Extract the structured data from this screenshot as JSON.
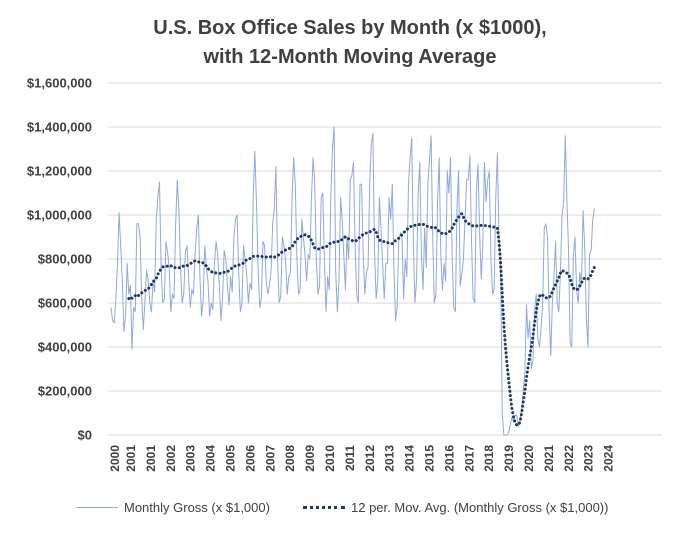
{
  "chart_data": {
    "type": "line",
    "title_line1": "U.S. Box Office Sales by Month (x $1000),",
    "title_line2": "with 12-Month Moving Average",
    "xlabel": "",
    "ylabel": "",
    "x_start_year": 2000,
    "x_tick_labels": [
      "2000",
      "2001",
      "2001",
      "2002",
      "2003",
      "2004",
      "2005",
      "2006",
      "2007",
      "2008",
      "2009",
      "2010",
      "2011",
      "2012",
      "2013",
      "2014",
      "2015",
      "2016",
      "2017",
      "2018",
      "2019",
      "2020",
      "2021",
      "2022",
      "2023",
      "2024"
    ],
    "y_tick_labels": [
      "$0",
      "$200,000",
      "$400,000",
      "$600,000",
      "$800,000",
      "$1,000,000",
      "$1,200,000",
      "$1,400,000",
      "$1,600,000"
    ],
    "ylim": [
      0,
      1600000
    ],
    "grid": true,
    "legend_position": "bottom",
    "colors": {
      "monthly": "#8eaadb",
      "moving_avg": "#1f3864",
      "grid": "#d9d9d9",
      "text": "#404040"
    },
    "series": [
      {
        "name": "Monthly Gross (x $1,000)",
        "style": "solid",
        "values": [
          580000,
          520000,
          510000,
          620000,
          780000,
          1010000,
          860000,
          700000,
          470000,
          540000,
          780000,
          640000,
          680000,
          390000,
          580000,
          560000,
          960000,
          960000,
          900000,
          620000,
          480000,
          610000,
          750000,
          700000,
          600000,
          560000,
          700000,
          650000,
          980000,
          1080000,
          1150000,
          760000,
          600000,
          620000,
          880000,
          830000,
          760000,
          560000,
          640000,
          620000,
          960000,
          1160000,
          1020000,
          760000,
          600000,
          640000,
          830000,
          860000,
          720000,
          580000,
          660000,
          640000,
          820000,
          940000,
          1000000,
          720000,
          540000,
          610000,
          860000,
          760000,
          700000,
          540000,
          600000,
          570000,
          780000,
          880000,
          820000,
          680000,
          520000,
          620000,
          840000,
          800000,
          680000,
          590000,
          720000,
          650000,
          900000,
          980000,
          1000000,
          740000,
          560000,
          600000,
          860000,
          800000,
          720000,
          600000,
          690000,
          660000,
          1100000,
          1290000,
          1050000,
          760000,
          580000,
          620000,
          880000,
          860000,
          700000,
          640000,
          680000,
          740000,
          960000,
          1030000,
          1220000,
          800000,
          600000,
          630000,
          900000,
          860000,
          790000,
          640000,
          720000,
          740000,
          1080000,
          1260000,
          1140000,
          800000,
          640000,
          660000,
          980000,
          900000,
          820000,
          700000,
          820000,
          800000,
          1080000,
          1260000,
          1160000,
          800000,
          640000,
          680000,
          1080000,
          1100000,
          800000,
          560000,
          720000,
          660000,
          1100000,
          1300000,
          1400000,
          740000,
          560000,
          700000,
          1080000,
          980000,
          820000,
          660000,
          900000,
          800000,
          1160000,
          1180000,
          1240000,
          850000,
          640000,
          600000,
          1140000,
          1140000,
          820000,
          640000,
          740000,
          760000,
          1140000,
          1320000,
          1370000,
          840000,
          620000,
          700000,
          1080000,
          940000,
          780000,
          620000,
          780000,
          780000,
          1080000,
          980000,
          1140000,
          760000,
          520000,
          580000,
          880000,
          920000,
          900000,
          620000,
          800000,
          720000,
          1140000,
          1260000,
          1350000,
          880000,
          600000,
          700000,
          1100000,
          1240000,
          820000,
          660000,
          940000,
          760000,
          1140000,
          1250000,
          1360000,
          900000,
          600000,
          640000,
          1060000,
          1260000,
          820000,
          660000,
          780000,
          700000,
          1200000,
          1100000,
          1260000,
          820000,
          580000,
          560000,
          1030000,
          1200000,
          680000,
          730000,
          800000,
          980000,
          1160000,
          1160000,
          1270000,
          880000,
          620000,
          600000,
          1100000,
          1230000,
          920000,
          710000,
          860000,
          1240000,
          1060000,
          1160000,
          1200000,
          800000,
          640000,
          660000,
          1080000,
          1280000,
          900000,
          760000,
          100000,
          0,
          0,
          0,
          10000,
          50000,
          80000,
          60000,
          90000,
          90000,
          40000,
          60000,
          120000,
          200000,
          280000,
          590000,
          440000,
          520000,
          300000,
          340000,
          560000,
          640000,
          440000,
          400000,
          480000,
          600000,
          940000,
          960000,
          900000,
          560000,
          360000,
          600000,
          720000,
          880000,
          600000,
          560000,
          740000,
          1000000,
          1060000,
          1360000,
          1070000,
          840000,
          420000,
          400000,
          820000,
          900000,
          660000,
          600000,
          740000,
          680000,
          1020000,
          860000,
          540000,
          400000,
          820000,
          840000,
          980000,
          1030000
        ]
      },
      {
        "name": "12 per. Mov. Avg. (Monthly Gross (x $1,000))",
        "style": "dotted",
        "values": [
          null,
          null,
          null,
          null,
          null,
          null,
          null,
          null,
          null,
          null,
          null,
          620000,
          628000,
          622000,
          628000,
          633000,
          640000,
          634000,
          637000,
          646000,
          651000,
          657000,
          659000,
          665000,
          672000,
          685000,
          696000,
          705000,
          712000,
          730000,
          745000,
          754000,
          764000,
          764000,
          765000,
          768000,
          770000,
          770000,
          763000,
          761000,
          761000,
          760000,
          760000,
          761000,
          766000,
          768000,
          768000,
          770000,
          774000,
          778000,
          783000,
          789000,
          791000,
          787000,
          786000,
          787000,
          786000,
          782000,
          775000,
          768000,
          757000,
          748000,
          743000,
          738000,
          736000,
          737000,
          736000,
          735000,
          734000,
          736000,
          740000,
          740000,
          743000,
          747000,
          754000,
          760000,
          766000,
          769000,
          770000,
          772000,
          776000,
          778000,
          782000,
          791000,
          797000,
          800000,
          802000,
          805000,
          812000,
          813000,
          813000,
          813000,
          813000,
          812000,
          810000,
          809000,
          809000,
          810000,
          810000,
          810000,
          812000,
          809000,
          811000,
          815000,
          820000,
          827000,
          833000,
          838000,
          841000,
          844000,
          847000,
          850000,
          857000,
          866000,
          880000,
          888000,
          898000,
          902000,
          904000,
          908000,
          910000,
          910000,
          905000,
          895000,
          884000,
          868000,
          851000,
          846000,
          845000,
          847000,
          849000,
          852000,
          853000,
          855000,
          860000,
          868000,
          873000,
          873000,
          877000,
          880000,
          880000,
          879000,
          882000,
          890000,
          895000,
          901000,
          896000,
          891000,
          890000,
          885000,
          880000,
          880000,
          885000,
          894000,
          899000,
          905000,
          912000,
          917000,
          918000,
          920000,
          923000,
          927000,
          931000,
          935000,
          923000,
          900000,
          887000,
          881000,
          880000,
          879000,
          878000,
          875000,
          872000,
          870000,
          870000,
          880000,
          883000,
          888000,
          895000,
          904000,
          910000,
          920000,
          926000,
          934000,
          940000,
          946000,
          950000,
          952000,
          953000,
          955000,
          957000,
          957000,
          958000,
          958000,
          955000,
          950000,
          948000,
          946000,
          944000,
          944000,
          946000,
          940000,
          932000,
          925000,
          919000,
          916000,
          913000,
          915000,
          918000,
          922000,
          930000,
          940000,
          955000,
          968000,
          980000,
          990000,
          1000000,
          1006000,
          990000,
          975000,
          966000,
          962000,
          956000,
          952000,
          950000,
          949000,
          950000,
          951000,
          952000,
          953000,
          953000,
          952000,
          951000,
          950000,
          949000,
          948000,
          946000,
          945000,
          943000,
          942000,
          880000,
          780000,
          640000,
          500000,
          400000,
          320000,
          250000,
          180000,
          120000,
          80000,
          55000,
          45000,
          45000,
          60000,
          100000,
          150000,
          200000,
          260000,
          310000,
          360000,
          400000,
          450000,
          510000,
          560000,
          600000,
          630000,
          640000,
          636000,
          628000,
          624000,
          622000,
          624000,
          634000,
          652000,
          668000,
          684000,
          700000,
          716000,
          735000,
          748000,
          744000,
          738000,
          736000,
          730000,
          712000,
          686000,
          668000,
          661000,
          660000,
          664000,
          678000,
          692000,
          706000,
          714000,
          712000,
          710000,
          716000,
          728000,
          748000,
          762000
        ]
      }
    ]
  }
}
